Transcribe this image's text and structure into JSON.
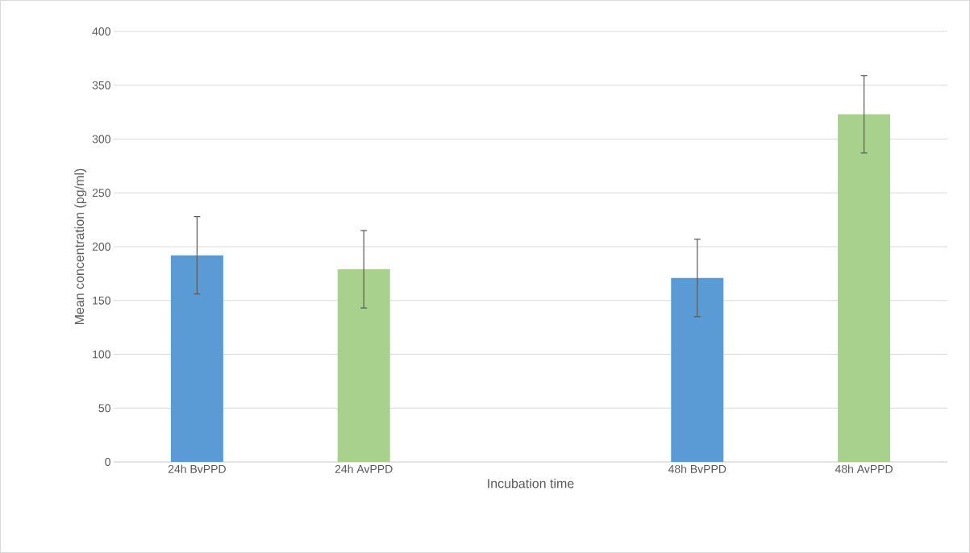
{
  "chart_data": {
    "type": "bar",
    "xlabel": "Incubation time",
    "ylabel": "Mean concentration (pg/ml)",
    "categories": [
      "24h BvPPD",
      "24h AvPPD",
      null,
      "48h BvPPD",
      "48h AvPPD"
    ],
    "values": [
      192,
      179,
      null,
      171,
      323
    ],
    "errors": [
      36,
      36,
      null,
      36,
      36
    ],
    "colors": [
      "#5b9bd5",
      "#a9d18e",
      null,
      "#5b9bd5",
      "#a9d18e"
    ],
    "ylim": [
      0,
      400
    ],
    "yticks": [
      0,
      50,
      100,
      150,
      200,
      250,
      300,
      350,
      400
    ],
    "grid": "y"
  }
}
